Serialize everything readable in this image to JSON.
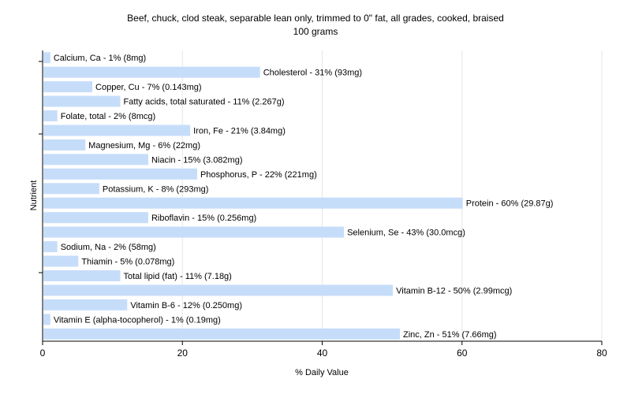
{
  "chart_data": {
    "type": "bar",
    "orientation": "horizontal",
    "title": "Beef, chuck, clod steak, separable lean only, trimmed to 0\" fat, all grades, cooked, braised",
    "subtitle": "100 grams",
    "xlabel": "% Daily Value",
    "ylabel": "Nutrient",
    "xlim": [
      0,
      80
    ],
    "xticks": [
      "0",
      "20",
      "40",
      "60",
      "80"
    ],
    "grid": true,
    "bar_color": "#c6ddfa",
    "categories": [
      "Calcium, Ca",
      "Cholesterol",
      "Copper, Cu",
      "Fatty acids, total saturated",
      "Folate, total",
      "Iron, Fe",
      "Magnesium, Mg",
      "Niacin",
      "Phosphorus, P",
      "Potassium, K",
      "Protein",
      "Riboflavin",
      "Selenium, Se",
      "Sodium, Na",
      "Thiamin",
      "Total lipid (fat)",
      "Vitamin B-12",
      "Vitamin B-6",
      "Vitamin E (alpha-tocopherol)",
      "Zinc, Zn"
    ],
    "values": [
      1,
      31,
      7,
      11,
      2,
      21,
      6,
      15,
      22,
      8,
      60,
      15,
      43,
      2,
      5,
      11,
      50,
      12,
      1,
      51
    ],
    "labels": [
      "Calcium, Ca - 1% (8mg)",
      "Cholesterol - 31% (93mg)",
      "Copper, Cu - 7% (0.143mg)",
      "Fatty acids, total saturated - 11% (2.267g)",
      "Folate, total - 2% (8mcg)",
      "Iron, Fe - 21% (3.84mg)",
      "Magnesium, Mg - 6% (22mg)",
      "Niacin - 15% (3.082mg)",
      "Phosphorus, P - 22% (221mg)",
      "Potassium, K - 8% (293mg)",
      "Protein - 60% (29.87g)",
      "Riboflavin - 15% (0.256mg)",
      "Selenium, Se - 43% (30.0mcg)",
      "Sodium, Na - 2% (58mg)",
      "Thiamin - 5% (0.078mg)",
      "Total lipid (fat) - 11% (7.18g)",
      "Vitamin B-12 - 50% (2.99mcg)",
      "Vitamin B-6 - 12% (0.250mg)",
      "Vitamin E (alpha-tocopherol) - 1% (0.19mg)",
      "Zinc, Zn - 51% (7.66mg)"
    ]
  }
}
